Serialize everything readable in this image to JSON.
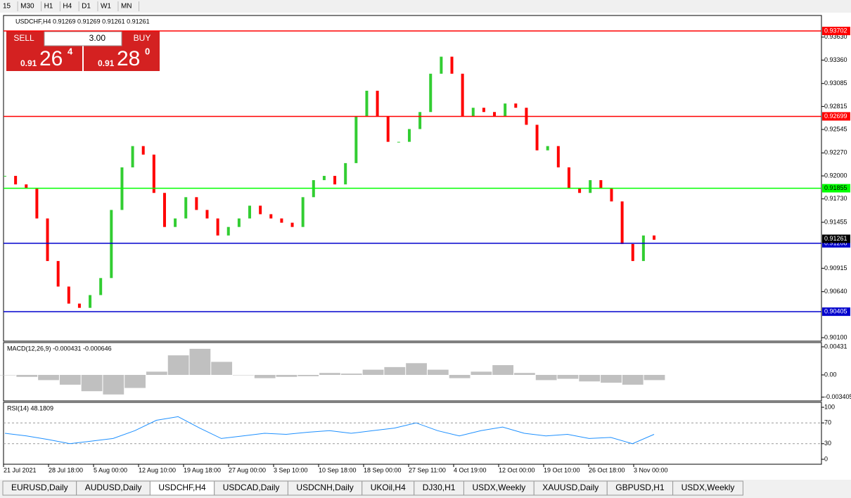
{
  "toolbar": {
    "timeframes": [
      "15",
      "M30",
      "H1",
      "H4",
      "D1",
      "W1",
      "MN"
    ]
  },
  "trade_panel": {
    "sell": "SELL",
    "lots": "3.00",
    "buy": "BUY",
    "bid": {
      "prefix": "0.91",
      "big": "26",
      "small": "4"
    },
    "ask": {
      "prefix": "0.91",
      "big": "28",
      "small": "0"
    }
  },
  "chart_data": [
    {
      "type": "candlestick",
      "title": "USDCHF,H4  0.91269 0.91269 0.91261 0.91261",
      "values": [
        0.92,
        0.919,
        0.9185,
        0.915,
        0.91,
        0.907,
        0.905,
        0.9045,
        0.906,
        0.908,
        0.916,
        0.921,
        0.9235,
        0.9225,
        0.918,
        0.914,
        0.915,
        0.9175,
        0.916,
        0.915,
        0.913,
        0.914,
        0.915,
        0.9165,
        0.9155,
        0.915,
        0.9145,
        0.914,
        0.9175,
        0.9195,
        0.92,
        0.919,
        0.9215,
        0.927,
        0.93,
        0.927,
        0.924,
        0.924,
        0.9255,
        0.9275,
        0.932,
        0.934,
        0.932,
        0.927,
        0.928,
        0.9275,
        0.927,
        0.9285,
        0.928,
        0.926,
        0.923,
        0.9235,
        0.921,
        0.9185,
        0.918,
        0.9195,
        0.9185,
        0.917,
        0.912,
        0.91,
        0.913,
        0.9125
      ],
      "up_color": "#32cd32",
      "down_color": "#ff0000",
      "ylim": [
        0.90059,
        0.93884
      ],
      "yticks": [
        {
          "value": 0.9363,
          "label": "0.93630"
        },
        {
          "value": 0.9336,
          "label": "0.93360"
        },
        {
          "value": 0.93085,
          "label": "0.93085"
        },
        {
          "value": 0.92815,
          "label": "0.92815"
        },
        {
          "value": 0.92545,
          "label": "0.92545"
        },
        {
          "value": 0.9227,
          "label": "0.92270"
        },
        {
          "value": 0.92,
          "label": "0.92000"
        },
        {
          "value": 0.9173,
          "label": "0.91730"
        },
        {
          "value": 0.91455,
          "label": "0.91455"
        },
        {
          "value": 0.90915,
          "label": "0.90915"
        },
        {
          "value": 0.9064,
          "label": "0.90640"
        },
        {
          "value": 0.901,
          "label": "0.90100"
        }
      ],
      "levels": [
        {
          "value": 0.93702,
          "label": "0.93702",
          "color": "#ff0000"
        },
        {
          "value": 0.92699,
          "label": "0.92699",
          "color": "#ff0000"
        },
        {
          "value": 0.91855,
          "label": "0.91855",
          "color": "#00ff00"
        },
        {
          "value": 0.91208,
          "label": "0.91208",
          "color": "#0000cd"
        },
        {
          "value": 0.90405,
          "label": "0.90405",
          "color": "#0000cd"
        }
      ],
      "current_price": {
        "value": 0.91261,
        "label": "0.91261"
      },
      "x_labels": [
        "21 Jul 2021",
        "28 Jul 18:00",
        "5 Aug 00:00",
        "12 Aug 10:00",
        "19 Aug 18:00",
        "27 Aug 00:00",
        "3 Sep 10:00",
        "10 Sep 18:00",
        "18 Sep 00:00",
        "27 Sep 11:00",
        "4 Oct 19:00",
        "12 Oct 00:00",
        "19 Oct 10:00",
        "26 Oct 18:00",
        "3 Nov 00:00"
      ]
    },
    {
      "type": "bar",
      "title": "MACD(12,26,9) -0.000431 -0.000646",
      "values": [
        0.0,
        -0.0003,
        -0.0008,
        -0.0015,
        -0.0025,
        -0.003,
        -0.002,
        0.0005,
        0.003,
        0.004,
        0.002,
        0.0,
        -0.0005,
        -0.0003,
        -0.0002,
        0.0003,
        0.0002,
        0.0008,
        0.0012,
        0.0018,
        0.0008,
        -0.0005,
        0.0005,
        0.0015,
        0.0003,
        -0.0008,
        -0.0006,
        -0.001,
        -0.0012,
        -0.0015,
        -0.0008
      ],
      "color": "#c0c0c0",
      "ylim": [
        -0.00399,
        0.00496
      ],
      "yticks": [
        {
          "value": 0.00431,
          "label": "0.00431"
        },
        {
          "value": 0,
          "label": "0.00"
        },
        {
          "value": -0.003405,
          "label": "-0.003405"
        }
      ]
    },
    {
      "type": "line",
      "title": "RSI(14) 48.1809",
      "values": [
        50,
        45,
        38,
        30,
        35,
        40,
        55,
        75,
        82,
        60,
        40,
        45,
        50,
        48,
        52,
        55,
        50,
        55,
        60,
        70,
        55,
        45,
        55,
        62,
        50,
        45,
        48,
        40,
        42,
        30,
        48
      ],
      "color": "#1e90ff",
      "ylim": [
        -9.5,
        109.5
      ],
      "yticks": [
        100,
        70,
        30,
        0
      ],
      "reference_lines": [
        70,
        30
      ]
    }
  ],
  "tabs": {
    "items": [
      "EURUSD,Daily",
      "AUDUSD,Daily",
      "USDCHF,H4",
      "USDCAD,Daily",
      "USDCNH,Daily",
      "UKOil,H4",
      "DJ30,H1",
      "USDX,Weekly",
      "XAUUSD,Daily",
      "GBPUSD,H1",
      "USDX,Weekly"
    ],
    "active": 2
  }
}
